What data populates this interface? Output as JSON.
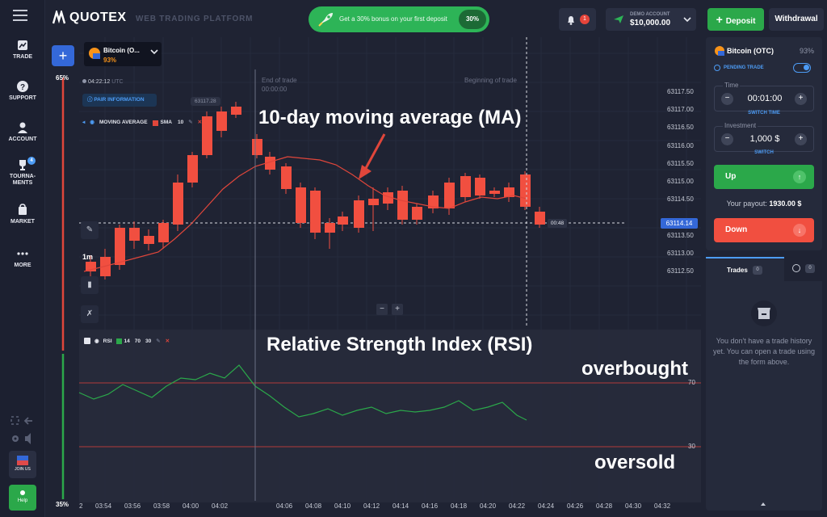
{
  "sidebar": {
    "items": [
      {
        "label": "TRADE",
        "icon": "chart-icon"
      },
      {
        "label": "SUPPORT",
        "icon": "help-circle-icon"
      },
      {
        "label": "ACCOUNT",
        "icon": "user-icon"
      },
      {
        "label": "TOURNA-",
        "label2": "MENTS",
        "icon": "trophy-icon",
        "badge": "4"
      },
      {
        "label": "MARKET",
        "icon": "cart-icon"
      },
      {
        "label": "MORE",
        "icon": "dots-icon"
      }
    ],
    "join_label": "JOIN US",
    "help_label": "Help"
  },
  "header": {
    "logo": "QUOTEX",
    "platform": "WEB TRADING PLATFORM",
    "bonus_text": "Get a 30% bonus on your first deposit",
    "bonus_pct": "30%",
    "notifications": "1",
    "account_label": "DEMO ACCOUNT",
    "balance": "$10,000.00",
    "deposit": "Deposit",
    "withdrawal": "Withdrawal"
  },
  "chart": {
    "asset": "Bitcoin (O...",
    "asset_pct": "93%",
    "time": "04:22:12",
    "tz": "UTC",
    "pair_info": "PAIR INFORMATION",
    "indicator": "MOVING AVERAGE",
    "ma_type": "SMA",
    "ma_period": "10",
    "end_of_trade": "End of trade",
    "end_time": "00:00:00",
    "beginning_of_trade": "Beginning of trade",
    "candle_tooltip": "63117.28",
    "timeframe": "1m",
    "current_price": "63114.14",
    "countdown": "00:48",
    "price_labels": [
      "63117.50",
      "63117.00",
      "63116.50",
      "63116.00",
      "63115.50",
      "63115.00",
      "63114.50",
      "63113.50",
      "63113.00",
      "63112.50"
    ],
    "time_labels": [
      "2",
      "03:54",
      "03:56",
      "03:58",
      "04:00",
      "04:02",
      "04:06",
      "04:08",
      "04:10",
      "04:12",
      "04:14",
      "04:16",
      "04:18",
      "04:20",
      "04:22",
      "04:24",
      "04:26",
      "04:28",
      "04:30",
      "04:32"
    ],
    "rsi_label": "RSI",
    "rsi_period": "14",
    "rsi_high": "70",
    "rsi_low": "30",
    "rsi_axis_70": "70",
    "rsi_axis_30": "30",
    "left_pct_top": "65%",
    "left_pct_bottom": "35%",
    "zoom_minus": "−",
    "zoom_plus": "+",
    "colors": {
      "up": "#2ba84a",
      "down": "#f14f40",
      "ma": "#e0463b",
      "rsi": "#2ba84a"
    }
  },
  "annotations": {
    "ma": "10-day moving average (MA)",
    "rsi": "Relative Strength Index (RSI)",
    "overbought": "overbought",
    "oversold": "oversold"
  },
  "trade_panel": {
    "asset": "Bitcoin (OTC)",
    "pct": "93%",
    "pending": "PENDING TRADE",
    "time_label": "Time",
    "time_value": "00:01:00",
    "switch_time": "SWITCH TIME",
    "investment_label": "Investment",
    "investment_value": "1,000 $",
    "switch": "SWITCH",
    "up": "Up",
    "payout_label": "Your payout:",
    "payout_value": "1930.00 $",
    "down": "Down"
  },
  "trades_panel": {
    "tab_trades": "Trades",
    "trades_count": "0",
    "pending_count": "0",
    "empty_text": "You don't have a trade history yet. You can open a trade using the form above."
  }
}
